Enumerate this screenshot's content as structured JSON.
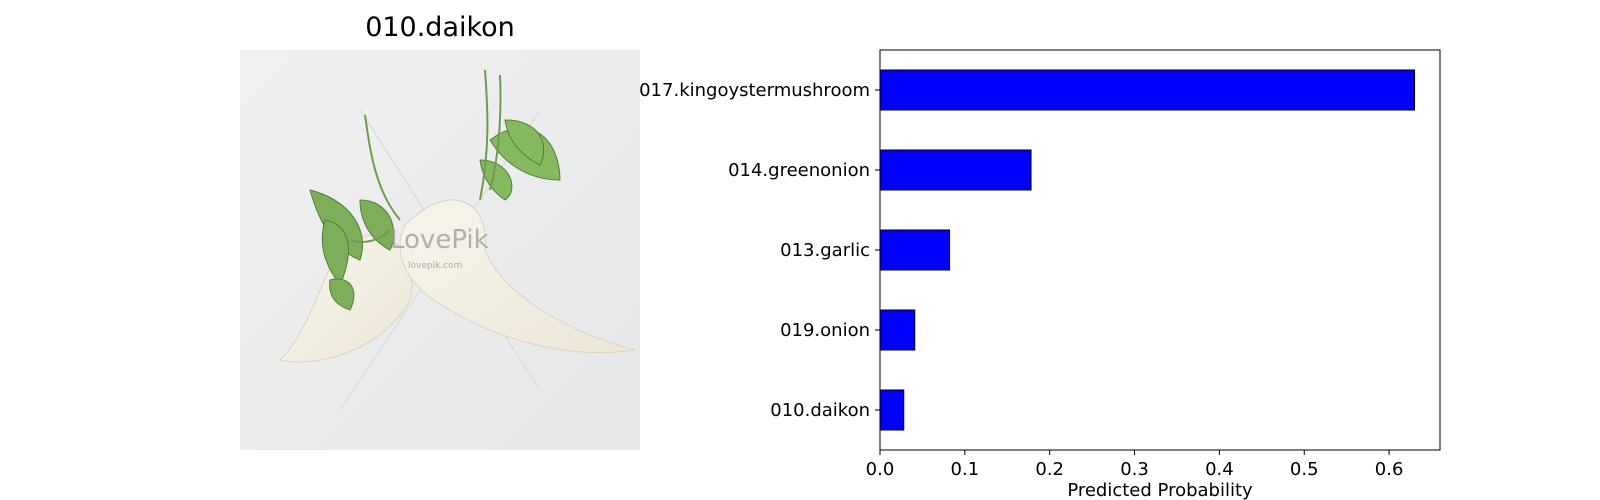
{
  "image_title": "010.daikon",
  "image_icon": "daikon-photo-icon",
  "watermark": {
    "brand": "LovePik",
    "url": "lovepik.com"
  },
  "chart_data": {
    "type": "bar",
    "orientation": "horizontal",
    "categories": [
      "017.kingoystermushroom",
      "014.greenonion",
      "013.garlic",
      "019.onion",
      "010.daikon"
    ],
    "values": [
      0.63,
      0.178,
      0.082,
      0.041,
      0.028
    ],
    "xlabel": "Predicted Probability",
    "ylabel": "",
    "xlim": [
      0,
      0.66
    ],
    "xticks": [
      "0.0",
      "0.1",
      "0.2",
      "0.3",
      "0.4",
      "0.5",
      "0.6"
    ],
    "bar_color": "#0000ff",
    "edge_color": "#000000",
    "grid": false
  }
}
